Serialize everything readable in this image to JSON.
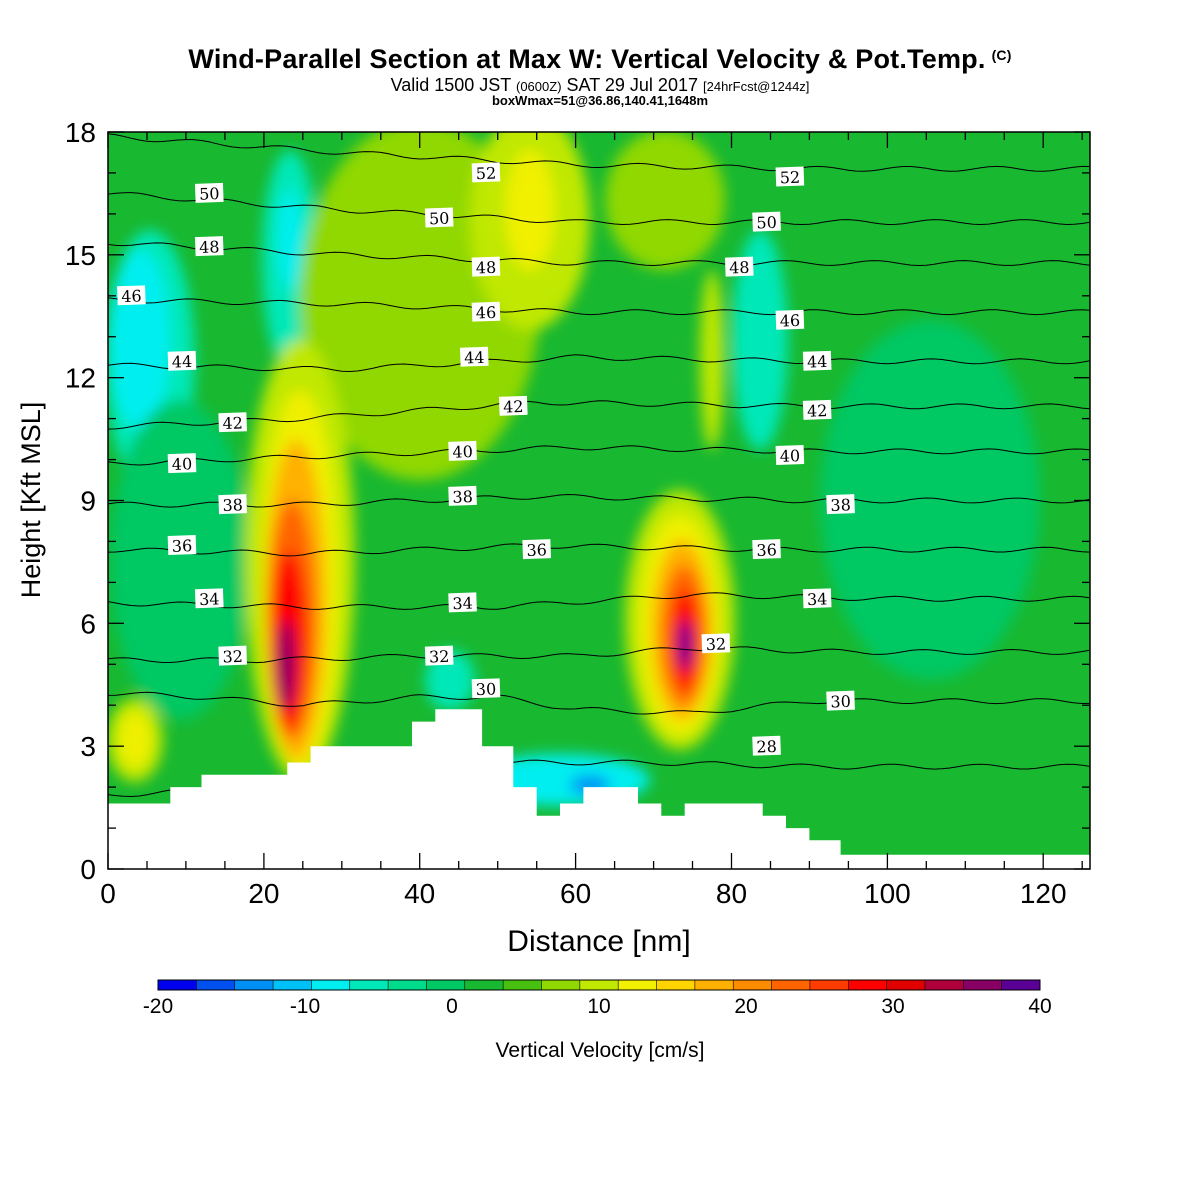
{
  "header": {
    "title": "Wind-Parallel Section at Max W: Vertical Velocity & Pot.Temp.",
    "copyright": "(C)",
    "valid_prefix": "Valid 1500 JST",
    "valid_utc": "(0600Z)",
    "valid_date": "SAT 29 Jul 2017",
    "forecast_tag": "[24hrFcst@1244z]",
    "box_info": "boxWmax=51@36.86,140.41,1648m"
  },
  "chart_data": {
    "type": "heatmap",
    "xlabel": "Distance [nm]",
    "ylabel": "Height [Kft MSL]",
    "xlim": [
      0,
      126
    ],
    "ylim": [
      0,
      18
    ],
    "x_ticks": [
      0,
      20,
      40,
      60,
      80,
      100,
      120
    ],
    "y_ticks": [
      0,
      3,
      6,
      9,
      12,
      15,
      18
    ],
    "grid": false,
    "field": "Vertical Velocity [cm/s]",
    "colorbar": {
      "label": "Vertical Velocity [cm/s]",
      "min": -20,
      "max": 40,
      "tick_values": [
        -20,
        -10,
        0,
        10,
        20,
        30,
        40
      ],
      "tick_labels": [
        "-20",
        "-10",
        "0",
        "10",
        "20",
        "30",
        "40"
      ],
      "colors": [
        "#0000ee",
        "#0050f0",
        "#0090f5",
        "#00c0f8",
        "#00eef0",
        "#00e8b8",
        "#00dc8c",
        "#00c864",
        "#18b830",
        "#48c010",
        "#90d800",
        "#c0e800",
        "#f0f000",
        "#ffd400",
        "#ffb000",
        "#ff8c00",
        "#ff6400",
        "#ff3c00",
        "#ff0000",
        "#e00000",
        "#b0003c",
        "#880064",
        "#5a0096"
      ]
    },
    "updraft_cores": [
      {
        "x": 23,
        "height": 5,
        "value": 40
      },
      {
        "x": 74,
        "height": 5.5,
        "value": 40
      }
    ],
    "terrain": [
      [
        0,
        1.6
      ],
      [
        8,
        1.6
      ],
      [
        8,
        2.0
      ],
      [
        12,
        2.0
      ],
      [
        12,
        2.3
      ],
      [
        23,
        2.3
      ],
      [
        23,
        2.6
      ],
      [
        26,
        2.6
      ],
      [
        26,
        3.0
      ],
      [
        39,
        3.0
      ],
      [
        39,
        3.6
      ],
      [
        42,
        3.6
      ],
      [
        42,
        3.9
      ],
      [
        48,
        3.9
      ],
      [
        48,
        3.0
      ],
      [
        52,
        3.0
      ],
      [
        52,
        2.0
      ],
      [
        55,
        2.0
      ],
      [
        55,
        1.3
      ],
      [
        58,
        1.3
      ],
      [
        58,
        1.6
      ],
      [
        61,
        1.6
      ],
      [
        61,
        2.0
      ],
      [
        68,
        2.0
      ],
      [
        68,
        1.6
      ],
      [
        71,
        1.6
      ],
      [
        71,
        1.3
      ],
      [
        74,
        1.3
      ],
      [
        74,
        1.6
      ],
      [
        84,
        1.6
      ],
      [
        84,
        1.3
      ],
      [
        87,
        1.3
      ],
      [
        87,
        1.0
      ],
      [
        90,
        1.0
      ],
      [
        90,
        0.7
      ],
      [
        94,
        0.7
      ],
      [
        94,
        0.35
      ],
      [
        126,
        0.35
      ]
    ],
    "isentropes": [
      {
        "value": "28",
        "heights": [
          [
            0,
            1.8
          ],
          [
            20,
            2.0
          ],
          [
            50,
            2.6
          ],
          [
            70,
            2.6
          ],
          [
            90,
            2.5
          ],
          [
            126,
            2.5
          ]
        ]
      },
      {
        "value": "30",
        "heights": [
          [
            0,
            4.3
          ],
          [
            12,
            4.2
          ],
          [
            25,
            4.0
          ],
          [
            40,
            4.2
          ],
          [
            50,
            4.2
          ],
          [
            60,
            3.9
          ],
          [
            75,
            3.8
          ],
          [
            90,
            4.1
          ],
          [
            126,
            4.1
          ]
        ]
      },
      {
        "value": "32",
        "heights": [
          [
            0,
            5.1
          ],
          [
            20,
            5.1
          ],
          [
            40,
            5.2
          ],
          [
            60,
            5.2
          ],
          [
            75,
            5.4
          ],
          [
            95,
            5.3
          ],
          [
            126,
            5.3
          ]
        ]
      },
      {
        "value": "34",
        "heights": [
          [
            0,
            6.5
          ],
          [
            25,
            6.4
          ],
          [
            50,
            6.4
          ],
          [
            75,
            6.7
          ],
          [
            100,
            6.6
          ],
          [
            126,
            6.6
          ]
        ]
      },
      {
        "value": "36",
        "heights": [
          [
            0,
            7.8
          ],
          [
            25,
            7.7
          ],
          [
            55,
            7.9
          ],
          [
            85,
            7.8
          ],
          [
            126,
            7.8
          ]
        ]
      },
      {
        "value": "38",
        "heights": [
          [
            0,
            8.9
          ],
          [
            25,
            8.9
          ],
          [
            55,
            9.1
          ],
          [
            90,
            9.0
          ],
          [
            126,
            9.0
          ]
        ]
      },
      {
        "value": "40",
        "heights": [
          [
            0,
            9.9
          ],
          [
            30,
            10.1
          ],
          [
            60,
            10.3
          ],
          [
            90,
            10.2
          ],
          [
            126,
            10.2
          ]
        ]
      },
      {
        "value": "42",
        "heights": [
          [
            0,
            10.8
          ],
          [
            25,
            11.0
          ],
          [
            55,
            11.4
          ],
          [
            90,
            11.3
          ],
          [
            126,
            11.3
          ]
        ]
      },
      {
        "value": "44",
        "heights": [
          [
            0,
            12.3
          ],
          [
            30,
            12.2
          ],
          [
            60,
            12.5
          ],
          [
            90,
            12.4
          ],
          [
            126,
            12.4
          ]
        ]
      },
      {
        "value": "46",
        "heights": [
          [
            0,
            13.9
          ],
          [
            30,
            13.8
          ],
          [
            60,
            13.6
          ],
          [
            90,
            13.6
          ],
          [
            126,
            13.6
          ]
        ]
      },
      {
        "value": "48",
        "heights": [
          [
            0,
            15.3
          ],
          [
            30,
            15.0
          ],
          [
            60,
            14.8
          ],
          [
            85,
            14.8
          ],
          [
            126,
            14.8
          ]
        ]
      },
      {
        "value": "50",
        "heights": [
          [
            0,
            16.5
          ],
          [
            30,
            16.1
          ],
          [
            60,
            15.8
          ],
          [
            90,
            15.8
          ],
          [
            126,
            15.8
          ]
        ]
      },
      {
        "value": "52",
        "heights": [
          [
            0,
            17.9
          ],
          [
            30,
            17.5
          ],
          [
            60,
            17.2
          ],
          [
            90,
            17.1
          ],
          [
            126,
            17.1
          ]
        ]
      }
    ],
    "contour_labels": [
      {
        "text": "52",
        "x": 48.5,
        "y": 17.0
      },
      {
        "text": "52",
        "x": 87.5,
        "y": 16.9
      },
      {
        "text": "50",
        "x": 13,
        "y": 16.5
      },
      {
        "text": "50",
        "x": 42.5,
        "y": 15.9
      },
      {
        "text": "50",
        "x": 84.5,
        "y": 15.8
      },
      {
        "text": "48",
        "x": 13,
        "y": 15.2
      },
      {
        "text": "48",
        "x": 48.5,
        "y": 14.7
      },
      {
        "text": "48",
        "x": 81,
        "y": 14.7
      },
      {
        "text": "46",
        "x": 3,
        "y": 14.0
      },
      {
        "text": "46",
        "x": 48.5,
        "y": 13.6
      },
      {
        "text": "46",
        "x": 87.5,
        "y": 13.4
      },
      {
        "text": "44",
        "x": 9.5,
        "y": 12.4
      },
      {
        "text": "44",
        "x": 47,
        "y": 12.5
      },
      {
        "text": "44",
        "x": 91,
        "y": 12.4
      },
      {
        "text": "42",
        "x": 16,
        "y": 10.9
      },
      {
        "text": "42",
        "x": 52,
        "y": 11.3
      },
      {
        "text": "42",
        "x": 91,
        "y": 11.2
      },
      {
        "text": "40",
        "x": 9.5,
        "y": 9.9
      },
      {
        "text": "40",
        "x": 45.5,
        "y": 10.2
      },
      {
        "text": "40",
        "x": 87.5,
        "y": 10.1
      },
      {
        "text": "38",
        "x": 16,
        "y": 8.9
      },
      {
        "text": "38",
        "x": 45.5,
        "y": 9.1
      },
      {
        "text": "38",
        "x": 94,
        "y": 8.9
      },
      {
        "text": "36",
        "x": 9.5,
        "y": 7.9
      },
      {
        "text": "36",
        "x": 55,
        "y": 7.8
      },
      {
        "text": "36",
        "x": 84.5,
        "y": 7.8
      },
      {
        "text": "34",
        "x": 13,
        "y": 6.6
      },
      {
        "text": "34",
        "x": 45.5,
        "y": 6.5
      },
      {
        "text": "34",
        "x": 91,
        "y": 6.6
      },
      {
        "text": "32",
        "x": 16,
        "y": 5.2
      },
      {
        "text": "32",
        "x": 42.5,
        "y": 5.2
      },
      {
        "text": "32",
        "x": 78,
        "y": 5.5
      },
      {
        "text": "30",
        "x": 48.5,
        "y": 4.4
      },
      {
        "text": "30",
        "x": 94,
        "y": 4.1
      },
      {
        "text": "28",
        "x": 84.5,
        "y": 3.0
      }
    ]
  }
}
